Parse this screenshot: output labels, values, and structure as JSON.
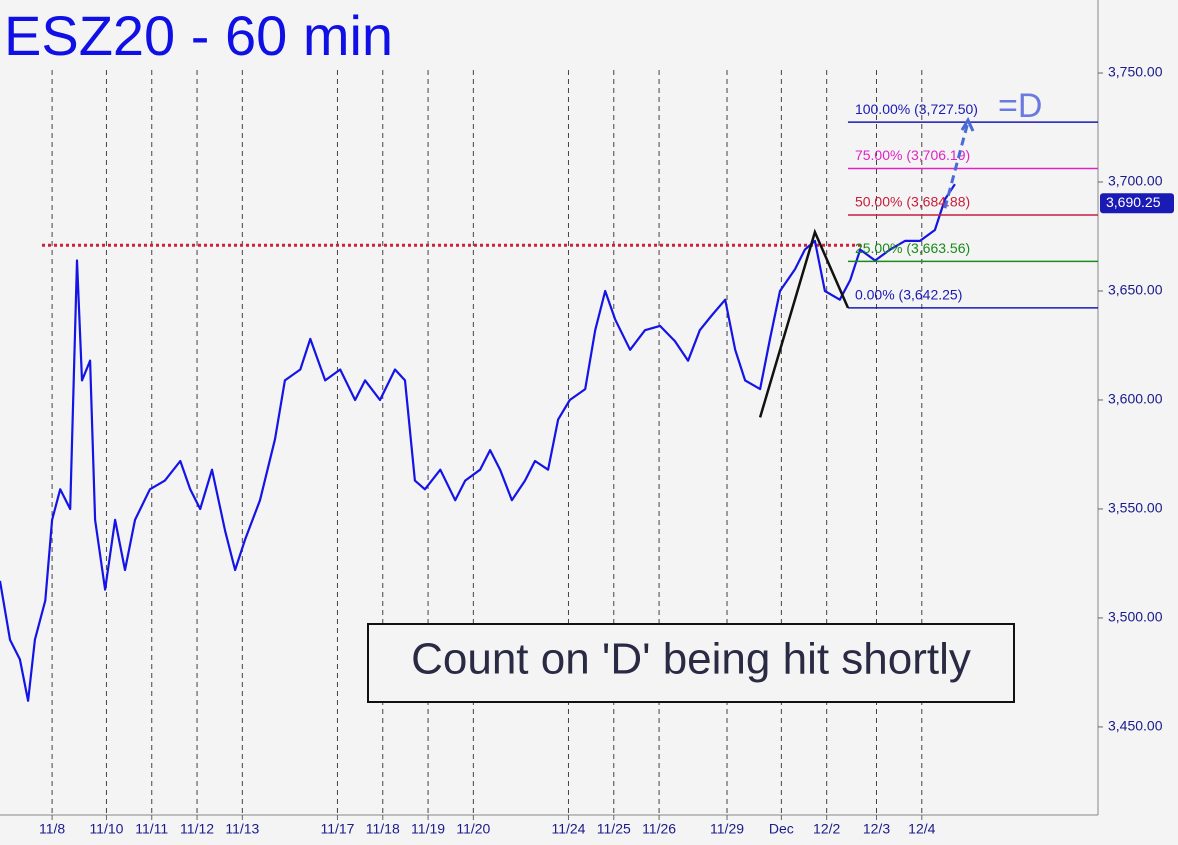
{
  "chart_data": {
    "type": "line",
    "title": "ESZ20 - 60 min",
    "annotation": "Count on 'D' being hit shortly",
    "target_label": "=D",
    "xlim": [
      -1.15,
      23.09
    ],
    "ylim": [
      3409.6,
      3783.5
    ],
    "xticks": [
      {
        "value": 0,
        "label": "11/8"
      },
      {
        "value": 1.2,
        "label": "11/10"
      },
      {
        "value": 2.2,
        "label": "11/11"
      },
      {
        "value": 3.2,
        "label": "11/12"
      },
      {
        "value": 4.2,
        "label": "11/13"
      },
      {
        "value": 6.3,
        "label": "11/17"
      },
      {
        "value": 7.3,
        "label": "11/18"
      },
      {
        "value": 8.3,
        "label": "11/19"
      },
      {
        "value": 9.3,
        "label": "11/20"
      },
      {
        "value": 11.4,
        "label": "11/24"
      },
      {
        "value": 12.4,
        "label": "11/25"
      },
      {
        "value": 13.4,
        "label": "11/26"
      },
      {
        "value": 14.9,
        "label": "11/29"
      },
      {
        "value": 16.1,
        "label": "Dec"
      },
      {
        "value": 17.1,
        "label": "12/2"
      },
      {
        "value": 18.2,
        "label": "12/3"
      },
      {
        "value": 19.2,
        "label": "12/4"
      }
    ],
    "yticks": [
      {
        "value": 3450,
        "label": "3,450.00"
      },
      {
        "value": 3500,
        "label": "3,500.00"
      },
      {
        "value": 3550,
        "label": "3,550.00"
      },
      {
        "value": 3600,
        "label": "3,600.00"
      },
      {
        "value": 3650,
        "label": "3,650.00"
      },
      {
        "value": 3700,
        "label": "3,700.00"
      },
      {
        "value": 3750,
        "label": "3,750.00"
      }
    ],
    "series": [
      {
        "name": "ESZ20",
        "color": "#1414e6",
        "x": [
          -1.15,
          -0.93,
          -0.71,
          -0.53,
          -0.38,
          -0.15,
          0,
          0.18,
          0.4,
          0.55,
          0.66,
          0.84,
          0.95,
          1.17,
          1.39,
          1.61,
          1.83,
          2.16,
          2.49,
          2.83,
          3.05,
          3.27,
          3.53,
          3.82,
          4.04,
          4.26,
          4.59,
          4.92,
          5.14,
          5.48,
          5.7,
          6.03,
          6.36,
          6.69,
          6.91,
          7.24,
          7.57,
          7.79,
          8.01,
          8.23,
          8.57,
          8.9,
          9.12,
          9.45,
          9.67,
          9.89,
          10.15,
          10.44,
          10.66,
          10.95,
          11.17,
          11.43,
          11.77,
          11.99,
          12.21,
          12.43,
          12.76,
          13.09,
          13.42,
          13.75,
          14.04,
          14.3,
          14.57,
          14.86,
          15.08,
          15.3,
          15.63,
          15.85,
          16.07,
          16.4,
          16.62,
          16.84,
          17.06,
          17.39,
          17.62,
          17.84,
          18.17,
          18.5,
          18.83,
          19.16,
          19.49,
          19.71,
          19.93
        ],
        "values": [
          3517,
          3490,
          3481,
          3462,
          3490,
          3508,
          3545,
          3559,
          3550,
          3664,
          3609,
          3618,
          3545,
          3513,
          3545,
          3522,
          3545,
          3559,
          3563,
          3572,
          3559,
          3550,
          3568,
          3540,
          3522,
          3536,
          3554,
          3582,
          3609,
          3614,
          3628,
          3609,
          3614,
          3600,
          3609,
          3600,
          3614,
          3609,
          3563,
          3559,
          3568,
          3554,
          3563,
          3568,
          3577,
          3568,
          3554,
          3563,
          3572,
          3568,
          3591,
          3600,
          3605,
          3632,
          3650,
          3637,
          3623,
          3632,
          3634,
          3627,
          3618,
          3632,
          3639,
          3646,
          3623,
          3609,
          3605,
          3628,
          3650,
          3660,
          3669,
          3673,
          3650,
          3646,
          3655,
          3669,
          3664,
          3669,
          3673,
          3673,
          3678,
          3692,
          3699
        ]
      }
    ],
    "last_price": {
      "value": 3690.25,
      "label": "3,690.25"
    },
    "resistance": 3671,
    "levels": [
      {
        "value": 3727.5,
        "label": "100.00% (3,727.50)",
        "color": "#1a1ab4"
      },
      {
        "value": 3706.19,
        "label": "75.00% (3,706.19)",
        "color": "#e024c4"
      },
      {
        "value": 3684.88,
        "label": "50.00% (3,684.88)",
        "color": "#c81e3c"
      },
      {
        "value": 3663.56,
        "label": "25.00% (3,663.56)",
        "color": "#1a8a1a"
      },
      {
        "value": 3642.25,
        "label": "0.00% (3,642.25)",
        "color": "#1a1ab4"
      }
    ],
    "pattern": {
      "x": [
        15.63,
        16.84,
        17.57
      ],
      "values": [
        3592,
        3677,
        3642.25
      ]
    },
    "projection": {
      "x": [
        19.71,
        20.22
      ],
      "values": [
        3688,
        3727.5
      ]
    }
  }
}
